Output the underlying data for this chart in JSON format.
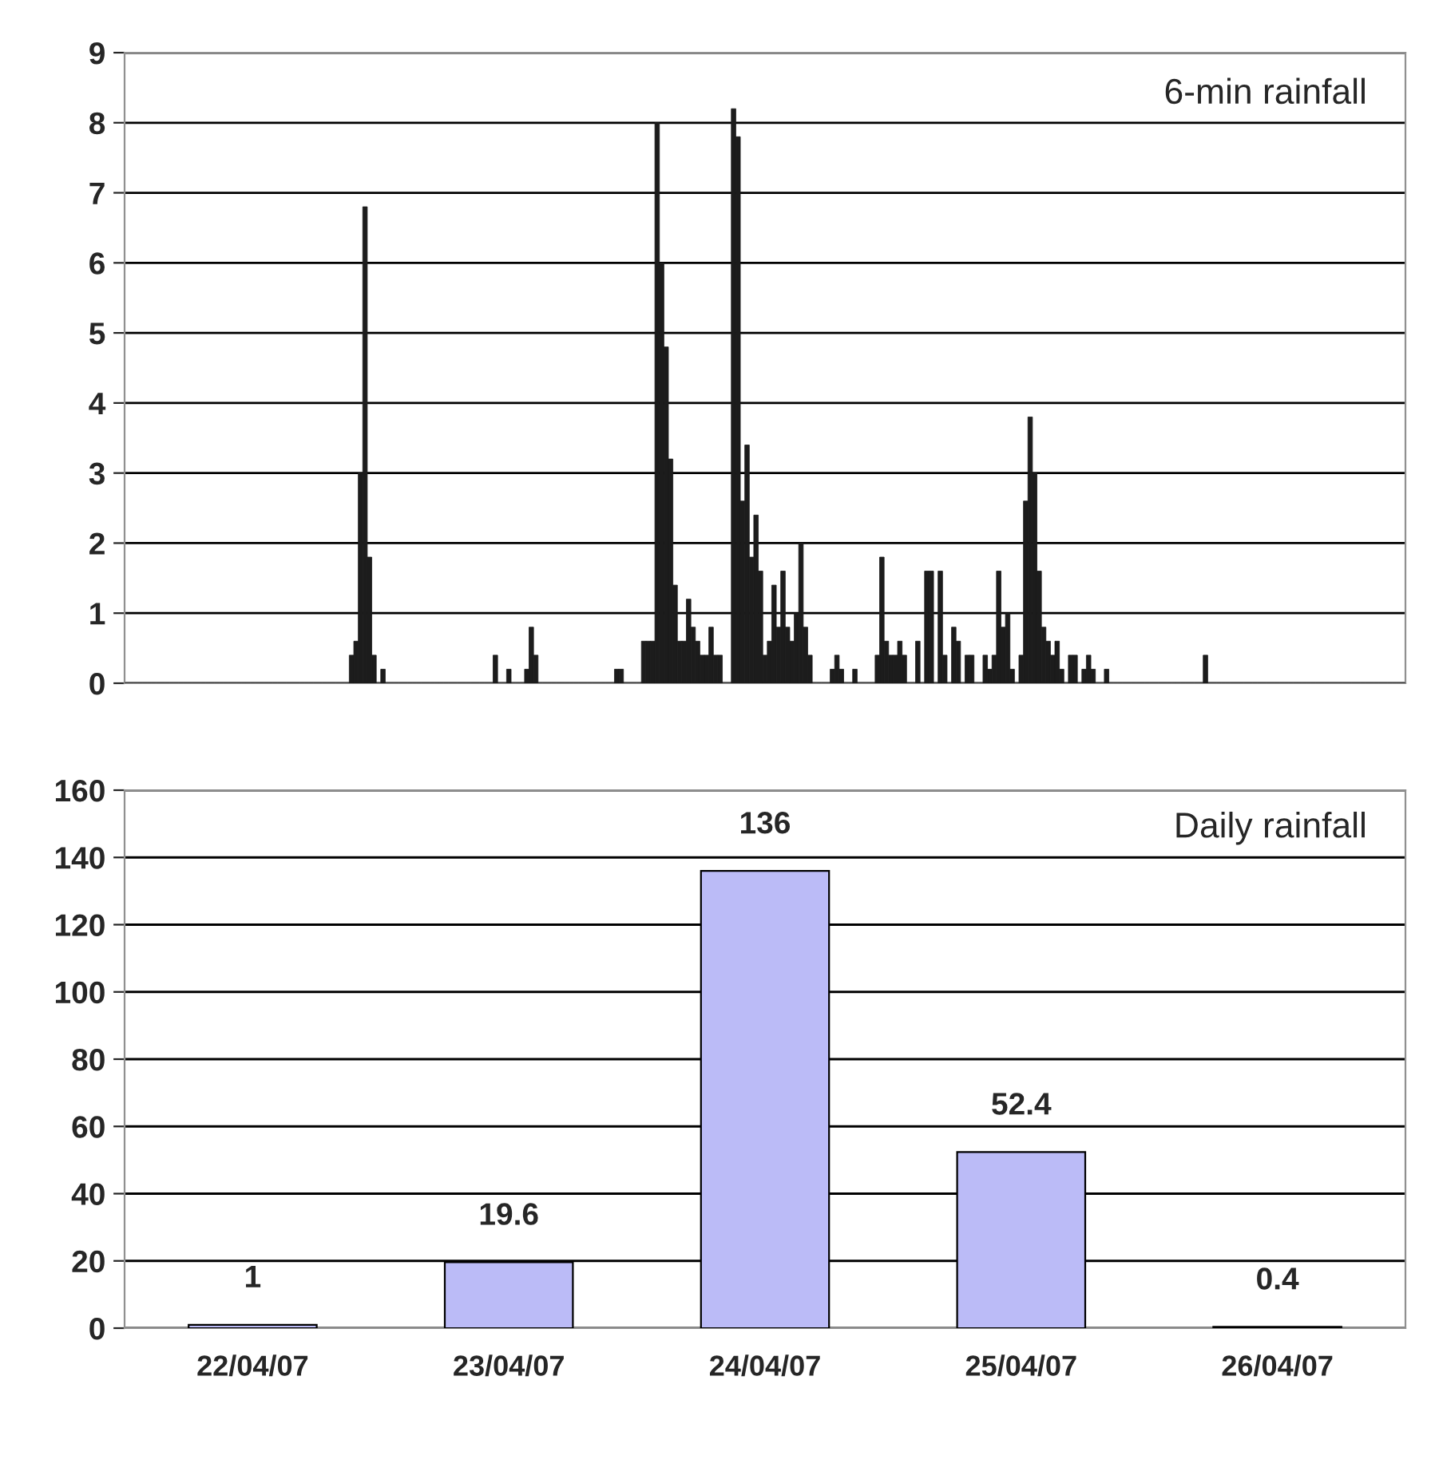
{
  "chart_data": [
    {
      "type": "bar",
      "title": "6-min rainfall",
      "color": "#1c1c1c",
      "ylim": [
        0,
        9
      ],
      "yticks": [
        0,
        1,
        2,
        3,
        4,
        5,
        6,
        7,
        8,
        9
      ],
      "grid": "y",
      "categories": [
        null,
        null,
        null,
        null,
        null,
        null,
        null,
        null,
        null,
        null,
        null,
        null,
        null,
        null,
        null,
        null,
        null,
        null,
        null,
        null,
        null,
        null,
        null,
        null,
        null,
        null,
        null,
        null,
        null,
        null,
        null,
        null,
        null,
        null,
        null,
        null,
        null,
        null,
        null,
        null,
        null,
        null,
        null,
        null,
        null,
        null,
        null,
        null,
        null,
        null,
        null,
        null,
        null,
        null,
        null,
        null,
        null,
        null,
        null,
        null,
        null,
        null,
        null,
        null,
        null,
        null,
        null,
        null,
        null,
        null,
        null,
        null,
        null,
        null,
        null,
        null,
        null,
        null,
        null,
        null,
        null,
        null,
        null,
        null,
        null,
        null,
        null,
        null,
        null,
        null,
        null,
        null,
        null,
        null,
        null,
        null,
        null,
        null,
        null,
        null,
        null,
        null,
        null,
        null,
        null,
        null,
        null,
        null,
        null,
        null,
        null,
        null,
        null,
        null,
        null,
        null,
        null,
        null,
        null,
        null,
        null,
        null,
        null,
        null,
        null,
        null,
        null,
        null,
        null,
        null,
        null,
        null,
        null,
        null,
        null,
        null,
        null,
        null,
        null,
        null,
        null,
        null,
        null,
        null,
        null,
        null,
        null,
        null,
        null,
        null,
        null,
        null,
        null,
        null,
        null,
        null,
        null,
        null,
        null,
        null,
        null,
        null,
        null,
        null,
        null,
        null,
        null,
        null,
        null,
        null,
        null,
        null,
        null,
        null,
        null,
        null,
        null,
        null,
        null,
        null,
        null,
        null,
        null,
        null,
        null,
        null,
        null,
        null,
        null,
        null,
        null,
        null,
        null,
        null,
        null,
        null,
        null,
        null,
        null,
        null,
        null,
        null,
        null,
        null,
        null,
        null,
        null,
        null,
        null,
        null,
        null,
        null,
        null,
        null,
        null,
        null,
        null,
        null,
        null,
        null,
        null,
        null,
        null,
        null,
        null,
        null,
        null,
        null,
        null,
        null,
        null,
        null,
        null,
        null,
        null,
        null,
        null,
        null,
        null,
        null,
        null,
        null,
        null,
        null,
        null,
        null,
        null,
        null,
        null,
        null,
        null,
        null,
        null,
        null,
        null,
        null,
        null,
        null,
        null,
        null,
        null,
        null,
        null,
        null,
        null,
        null,
        null,
        null,
        null,
        null,
        null,
        null,
        null,
        null,
        null,
        null,
        null,
        null,
        null,
        null,
        null,
        null,
        null,
        null,
        null
      ],
      "values": [
        0,
        0,
        0,
        0,
        0,
        0,
        0,
        0,
        0,
        0,
        0,
        0,
        0,
        0,
        0,
        0,
        0,
        0,
        0,
        0,
        0,
        0,
        0,
        0,
        0,
        0,
        0,
        0,
        0,
        0,
        0,
        0,
        0,
        0,
        0,
        0,
        0,
        0,
        0,
        0,
        0,
        0,
        0,
        0,
        0,
        0,
        0,
        0,
        0,
        0,
        0.4,
        0.6,
        3.0,
        6.8,
        1.8,
        0.4,
        0,
        0.2,
        0,
        0,
        0,
        0,
        0,
        0,
        0,
        0,
        0,
        0,
        0,
        0,
        0,
        0,
        0,
        0,
        0,
        0,
        0,
        0,
        0,
        0,
        0,
        0,
        0.4,
        0,
        0,
        0.2,
        0,
        0,
        0,
        0.2,
        0.8,
        0.4,
        0,
        0,
        0,
        0,
        0,
        0,
        0,
        0,
        0,
        0,
        0,
        0,
        0,
        0,
        0,
        0,
        0,
        0.2,
        0.2,
        0,
        0,
        0,
        0,
        0.6,
        0.6,
        0.6,
        8.0,
        6.0,
        4.8,
        3.2,
        1.4,
        0.6,
        0.6,
        1.2,
        0.8,
        0.6,
        0.4,
        0.4,
        0.8,
        0.4,
        0.4,
        0,
        0,
        8.2,
        7.8,
        2.6,
        3.4,
        1.8,
        2.4,
        1.6,
        0.4,
        0.6,
        1.4,
        0.8,
        1.6,
        0.8,
        0.6,
        1.0,
        2.0,
        0.8,
        0.4,
        0,
        0,
        0,
        0,
        0.2,
        0.4,
        0.2,
        0,
        0,
        0.2,
        0,
        0,
        0,
        0,
        0.4,
        1.8,
        0.6,
        0.4,
        0.4,
        0.6,
        0.4,
        0,
        0,
        0.6,
        0,
        1.6,
        1.6,
        0,
        1.6,
        0.4,
        0,
        0.8,
        0.6,
        0,
        0.4,
        0.4,
        0,
        0,
        0.4,
        0.2,
        0.4,
        1.6,
        0.8,
        1.0,
        0.2,
        0,
        0.4,
        2.6,
        3.8,
        3.0,
        1.6,
        0.8,
        0.6,
        0.4,
        0.6,
        0.2,
        0,
        0.4,
        0.4,
        0,
        0.2,
        0.4,
        0.2,
        0,
        0,
        0.2,
        0,
        0,
        0,
        0,
        0,
        0,
        0,
        0,
        0,
        0,
        0,
        0,
        0,
        0,
        0,
        0,
        0,
        0,
        0,
        0,
        0,
        0.4,
        0,
        0,
        0,
        0,
        0,
        0,
        0,
        0,
        0,
        0,
        0,
        0,
        0,
        0,
        0,
        0,
        0,
        0,
        0,
        0,
        0,
        0,
        0,
        0,
        0,
        0,
        0,
        0,
        0,
        0,
        0,
        0,
        0,
        0,
        0,
        0,
        0,
        0,
        0,
        0,
        0,
        0,
        0,
        0
      ]
    },
    {
      "type": "bar",
      "title": "Daily rainfall",
      "color": "#bbbbf7",
      "ylim": [
        0,
        160
      ],
      "yticks": [
        0,
        20,
        40,
        60,
        80,
        100,
        120,
        140,
        160
      ],
      "grid": "y",
      "data_labels": true,
      "categories": [
        "22/04/07",
        "23/04/07",
        "24/04/07",
        "25/04/07",
        "26/04/07"
      ],
      "values": [
        1,
        19.6,
        136,
        52.4,
        0.4
      ]
    }
  ]
}
